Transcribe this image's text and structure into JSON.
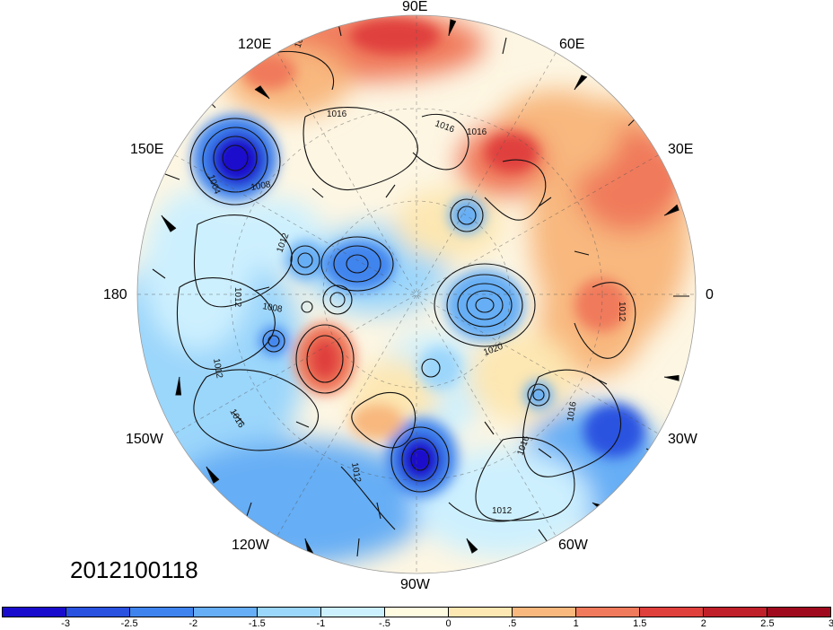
{
  "map": {
    "projection": "polar-stereographic-north",
    "variable_description": "anomaly shading with sea-level pressure contours and wind barbs",
    "date_label": "2012100118",
    "longitude_labels": {
      "lon_90e": "90E",
      "lon_60e": "60E",
      "lon_30e": "30E",
      "lon_0": "0",
      "lon_30w": "30W",
      "lon_60w": "60W",
      "lon_90w": "90W",
      "lon_120w": "120W",
      "lon_150w": "150W",
      "lon_180": "180",
      "lon_150e": "150E",
      "lon_120e": "120E"
    },
    "contour_labels": [
      "1012",
      "1016",
      "1016",
      "1004",
      "1008",
      "1012",
      "1016",
      "1008",
      "1012",
      "1012",
      "1016",
      "1012",
      "1012",
      "1016",
      "1020",
      "1016",
      "1012"
    ]
  },
  "colorbar": {
    "colors": [
      "#1a0ccc",
      "#2a52e0",
      "#3f84ee",
      "#66aef5",
      "#9bd6fb",
      "#cdf0fe",
      "#fffbe0",
      "#fde7b2",
      "#f8b87e",
      "#f07a5c",
      "#e0403c",
      "#c0202a",
      "#a00a1e"
    ],
    "ticks": [
      "-3",
      "-2.5",
      "-2",
      "-1.5",
      "-1",
      "-.5",
      "0",
      ".5",
      "1",
      "1.5",
      "2",
      "2.5",
      "3"
    ]
  }
}
